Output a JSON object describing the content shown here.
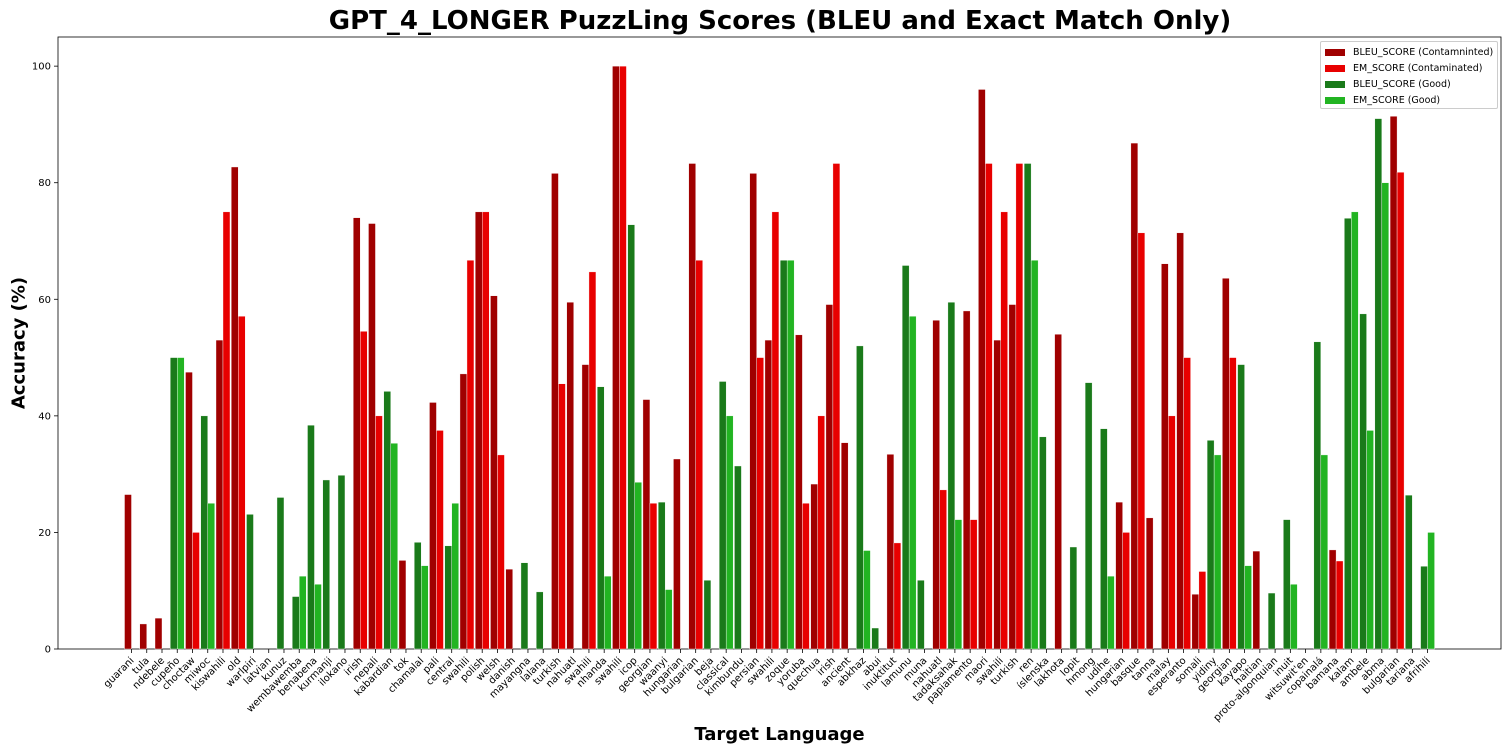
{
  "chart_data": {
    "type": "bar",
    "title": "GPT_4_LONGER PuzzLing Scores (BLEU and Exact Match Only)",
    "xlabel": "Target Language",
    "ylabel": "Accuracy (%)",
    "ylim": [
      0,
      105
    ],
    "yticks": [
      0,
      20,
      40,
      60,
      80,
      100
    ],
    "grid": false,
    "legend_position": "top-right",
    "series": [
      {
        "name": "BLEU_SCORE (Contamninted)",
        "color": "#a00000"
      },
      {
        "name": "EM_SCORE (Contaminated)",
        "color": "#e80000"
      },
      {
        "name": "BLEU_SCORE (Good)",
        "color": "#1a7a1a"
      },
      {
        "name": "EM_SCORE (Good)",
        "color": "#22b422"
      }
    ],
    "categories": [
      {
        "label": "guarani",
        "group": "Contaminated",
        "bleu": 26.5,
        "em": 0
      },
      {
        "label": "tula",
        "group": "Contaminated",
        "bleu": 4.3,
        "em": 0
      },
      {
        "label": "ndebele",
        "group": "Contaminated",
        "bleu": 5.3,
        "em": 0
      },
      {
        "label": "cupeño",
        "group": "Good",
        "bleu": 50,
        "em": 50
      },
      {
        "label": "choctaw",
        "group": "Contaminated",
        "bleu": 47.5,
        "em": 20
      },
      {
        "label": "miwoc",
        "group": "Good",
        "bleu": 40,
        "em": 25
      },
      {
        "label": "kiswahili",
        "group": "Contaminated",
        "bleu": 53,
        "em": 75
      },
      {
        "label": "old",
        "group": "Contaminated",
        "bleu": 82.7,
        "em": 57.1
      },
      {
        "label": "warlpiri",
        "group": "Good",
        "bleu": 23.1,
        "em": 0
      },
      {
        "label": "latvian",
        "group": "Good",
        "bleu": 0,
        "em": 0
      },
      {
        "label": "kunuz",
        "group": "Good",
        "bleu": 26,
        "em": 0
      },
      {
        "label": "wembawemba",
        "group": "Good",
        "bleu": 9,
        "em": 12.5
      },
      {
        "label": "benabena",
        "group": "Good",
        "bleu": 38.4,
        "em": 11.1
      },
      {
        "label": "kurmanji",
        "group": "Good",
        "bleu": 29,
        "em": 0
      },
      {
        "label": "ilokano",
        "group": "Good",
        "bleu": 29.8,
        "em": 0
      },
      {
        "label": "irish",
        "group": "Contaminated",
        "bleu": 74,
        "em": 54.5
      },
      {
        "label": "nepali",
        "group": "Contaminated",
        "bleu": 73,
        "em": 40
      },
      {
        "label": "kabardian",
        "group": "Good",
        "bleu": 44.2,
        "em": 35.3
      },
      {
        "label": "tok",
        "group": "Contaminated",
        "bleu": 15.2,
        "em": 0
      },
      {
        "label": "chamalal",
        "group": "Good",
        "bleu": 18.3,
        "em": 14.3
      },
      {
        "label": "pali",
        "group": "Contaminated",
        "bleu": 42.3,
        "em": 37.5
      },
      {
        "label": "central",
        "group": "Good",
        "bleu": 17.7,
        "em": 25
      },
      {
        "label": "swahili",
        "group": "Contaminated",
        "bleu": 47.2,
        "em": 66.7
      },
      {
        "label": "polish",
        "group": "Contaminated",
        "bleu": 75,
        "em": 75
      },
      {
        "label": "welsh",
        "group": "Contaminated",
        "bleu": 60.6,
        "em": 33.3
      },
      {
        "label": "danish",
        "group": "Contaminated",
        "bleu": 13.7,
        "em": 0
      },
      {
        "label": "mayangna",
        "group": "Good",
        "bleu": 14.8,
        "em": 0
      },
      {
        "label": "lalana",
        "group": "Good",
        "bleu": 9.8,
        "em": 0
      },
      {
        "label": "turkish",
        "group": "Contaminated",
        "bleu": 81.6,
        "em": 45.5
      },
      {
        "label": "nahuatl",
        "group": "Contaminated",
        "bleu": 59.5,
        "em": 0
      },
      {
        "label": "swahili",
        "group": "Contaminated",
        "bleu": 48.8,
        "em": 64.7
      },
      {
        "label": "nhanda",
        "group": "Good",
        "bleu": 45,
        "em": 12.5
      },
      {
        "label": "swahili",
        "group": "Contaminated",
        "bleu": 100,
        "em": 100
      },
      {
        "label": "icop",
        "group": "Good",
        "bleu": 72.8,
        "em": 28.6
      },
      {
        "label": "georgian",
        "group": "Contaminated",
        "bleu": 42.8,
        "em": 25
      },
      {
        "label": "waanyi",
        "group": "Good",
        "bleu": 25.2,
        "em": 10.2
      },
      {
        "label": "hungarian",
        "group": "Contaminated",
        "bleu": 32.6,
        "em": 0
      },
      {
        "label": "bulgarian",
        "group": "Contaminated",
        "bleu": 83.3,
        "em": 66.7
      },
      {
        "label": "beja",
        "group": "Good",
        "bleu": 11.8,
        "em": 0
      },
      {
        "label": "classical",
        "group": "Good",
        "bleu": 45.9,
        "em": 40
      },
      {
        "label": "kimbundu",
        "group": "Good",
        "bleu": 31.4,
        "em": 0
      },
      {
        "label": "persian",
        "group": "Contaminated",
        "bleu": 81.6,
        "em": 50
      },
      {
        "label": "swahili",
        "group": "Contaminated",
        "bleu": 53,
        "em": 75
      },
      {
        "label": "zoque",
        "group": "Good",
        "bleu": 66.7,
        "em": 66.7
      },
      {
        "label": "yoruba",
        "group": "Contaminated",
        "bleu": 53.9,
        "em": 25
      },
      {
        "label": "quechua",
        "group": "Contaminated",
        "bleu": 28.3,
        "em": 40
      },
      {
        "label": "irish",
        "group": "Contaminated",
        "bleu": 59.1,
        "em": 83.3
      },
      {
        "label": "ancient",
        "group": "Contaminated",
        "bleu": 35.4,
        "em": 0
      },
      {
        "label": "abkhaz",
        "group": "Good",
        "bleu": 52,
        "em": 16.9
      },
      {
        "label": "abui",
        "group": "Good",
        "bleu": 3.6,
        "em": 0
      },
      {
        "label": "inuktitut",
        "group": "Contaminated",
        "bleu": 33.4,
        "em": 18.2
      },
      {
        "label": "lamunu",
        "group": "Good",
        "bleu": 65.8,
        "em": 57.1
      },
      {
        "label": "muna",
        "group": "Good",
        "bleu": 11.8,
        "em": 0
      },
      {
        "label": "nahuatl",
        "group": "Contaminated",
        "bleu": 56.4,
        "em": 27.3
      },
      {
        "label": "tadaksahak",
        "group": "Good",
        "bleu": 59.5,
        "em": 22.2
      },
      {
        "label": "papiamento",
        "group": "Contaminated",
        "bleu": 58,
        "em": 22.2
      },
      {
        "label": "maori",
        "group": "Contaminated",
        "bleu": 96,
        "em": 83.3
      },
      {
        "label": "swahili",
        "group": "Contaminated",
        "bleu": 53,
        "em": 75
      },
      {
        "label": "turkish",
        "group": "Contaminated",
        "bleu": 59.1,
        "em": 83.3
      },
      {
        "label": "ren",
        "group": "Good",
        "bleu": 83.3,
        "em": 66.7
      },
      {
        "label": "íslenska",
        "group": "Good",
        "bleu": 36.4,
        "em": 0
      },
      {
        "label": "lakhota",
        "group": "Contaminated",
        "bleu": 54,
        "em": 0
      },
      {
        "label": "lopit",
        "group": "Good",
        "bleu": 17.5,
        "em": 0
      },
      {
        "label": "hmong",
        "group": "Good",
        "bleu": 45.7,
        "em": 0
      },
      {
        "label": "udihe",
        "group": "Good",
        "bleu": 37.8,
        "em": 12.5
      },
      {
        "label": "hungarian",
        "group": "Contaminated",
        "bleu": 25.2,
        "em": 20
      },
      {
        "label": "basque",
        "group": "Contaminated",
        "bleu": 86.8,
        "em": 71.4
      },
      {
        "label": "tanna",
        "group": "Contaminated",
        "bleu": 22.5,
        "em": 0
      },
      {
        "label": "malay",
        "group": "Contaminated",
        "bleu": 66.1,
        "em": 40
      },
      {
        "label": "esperanto",
        "group": "Contaminated",
        "bleu": 71.4,
        "em": 50
      },
      {
        "label": "somali",
        "group": "Contaminated",
        "bleu": 9.4,
        "em": 13.3
      },
      {
        "label": "yidiny",
        "group": "Good",
        "bleu": 35.8,
        "em": 33.3
      },
      {
        "label": "georgian",
        "group": "Contaminated",
        "bleu": 63.6,
        "em": 50
      },
      {
        "label": "kayapo",
        "group": "Good",
        "bleu": 48.8,
        "em": 14.3
      },
      {
        "label": "haitian",
        "group": "Contaminated",
        "bleu": 16.8,
        "em": 0
      },
      {
        "label": "proto-algonquian",
        "group": "Good",
        "bleu": 9.6,
        "em": 0
      },
      {
        "label": "inuit",
        "group": "Good",
        "bleu": 22.2,
        "em": 11.1
      },
      {
        "label": "witsuwit'en",
        "group": "Good",
        "bleu": 0,
        "em": 0
      },
      {
        "label": "copainalá",
        "group": "Good",
        "bleu": 52.7,
        "em": 33.3
      },
      {
        "label": "bamana",
        "group": "Contaminated",
        "bleu": 17,
        "em": 15.1
      },
      {
        "label": "kalam",
        "group": "Good",
        "bleu": 73.9,
        "em": 75
      },
      {
        "label": "ambele",
        "group": "Good",
        "bleu": 57.5,
        "em": 37.5
      },
      {
        "label": "abma",
        "group": "Good",
        "bleu": 91,
        "em": 80
      },
      {
        "label": "bulgarian",
        "group": "Contaminated",
        "bleu": 91.4,
        "em": 81.8
      },
      {
        "label": "tariana",
        "group": "Good",
        "bleu": 26.4,
        "em": 0
      },
      {
        "label": "afrihili",
        "group": "Good",
        "bleu": 14.2,
        "em": 20
      }
    ]
  }
}
